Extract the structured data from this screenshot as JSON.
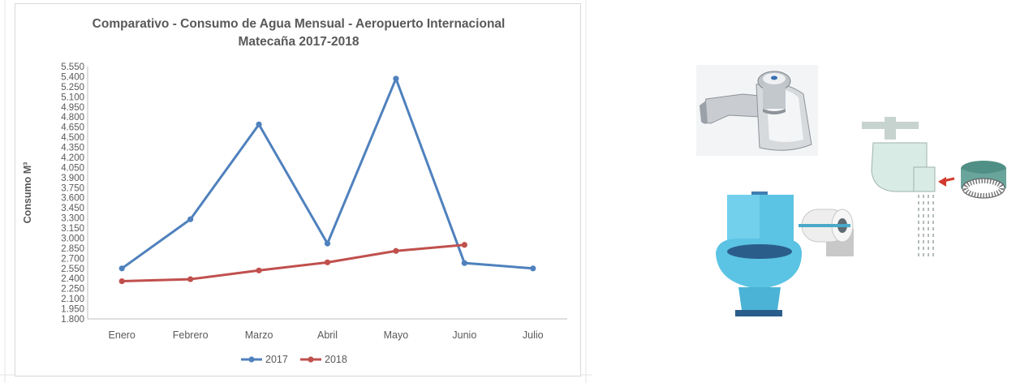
{
  "chart_data": {
    "type": "line",
    "title_lines": [
      "Comparativo - Consumo de Agua Mensual - Aeropuerto Internacional",
      "Matecaña 2017-2018"
    ],
    "ylabel": "Consumo  M³",
    "xlabel": "",
    "categories": [
      "Enero",
      "Febrero",
      "Marzo",
      "Abril",
      "Mayo",
      "Junio",
      "Julio"
    ],
    "ylim": [
      1800,
      5550
    ],
    "yticks": [
      1800,
      1950,
      2100,
      2250,
      2400,
      2550,
      2700,
      2850,
      3000,
      3150,
      3300,
      3450,
      3600,
      3750,
      3900,
      4050,
      4200,
      4350,
      4500,
      4650,
      4800,
      4950,
      5100,
      5250,
      5400,
      5550
    ],
    "ytick_labels": [
      "1.800",
      "1.950",
      "2.100",
      "2.250",
      "2.400",
      "2.550",
      "2.700",
      "2.850",
      "3.000",
      "3.150",
      "3.300",
      "3.450",
      "3.600",
      "3.750",
      "3.900",
      "4.050",
      "4.200",
      "4.350",
      "4.500",
      "4.650",
      "4.800",
      "4.950",
      "5.100",
      "5.250",
      "5.400",
      "5.550"
    ],
    "grid": false,
    "legend_position": "bottom",
    "series": [
      {
        "name": "2017",
        "color": "#4f81bd",
        "values": [
          2550,
          3280,
          4690,
          2920,
          5370,
          2630,
          2550
        ]
      },
      {
        "name": "2018",
        "color": "#c0504d",
        "values": [
          2360,
          2390,
          2520,
          2640,
          2810,
          2900,
          null
        ]
      }
    ]
  },
  "illustrations": {
    "icons": [
      "push-faucet-icon",
      "tap-aerator-icon",
      "toilet-icon",
      "toilet-paper-icon"
    ]
  }
}
